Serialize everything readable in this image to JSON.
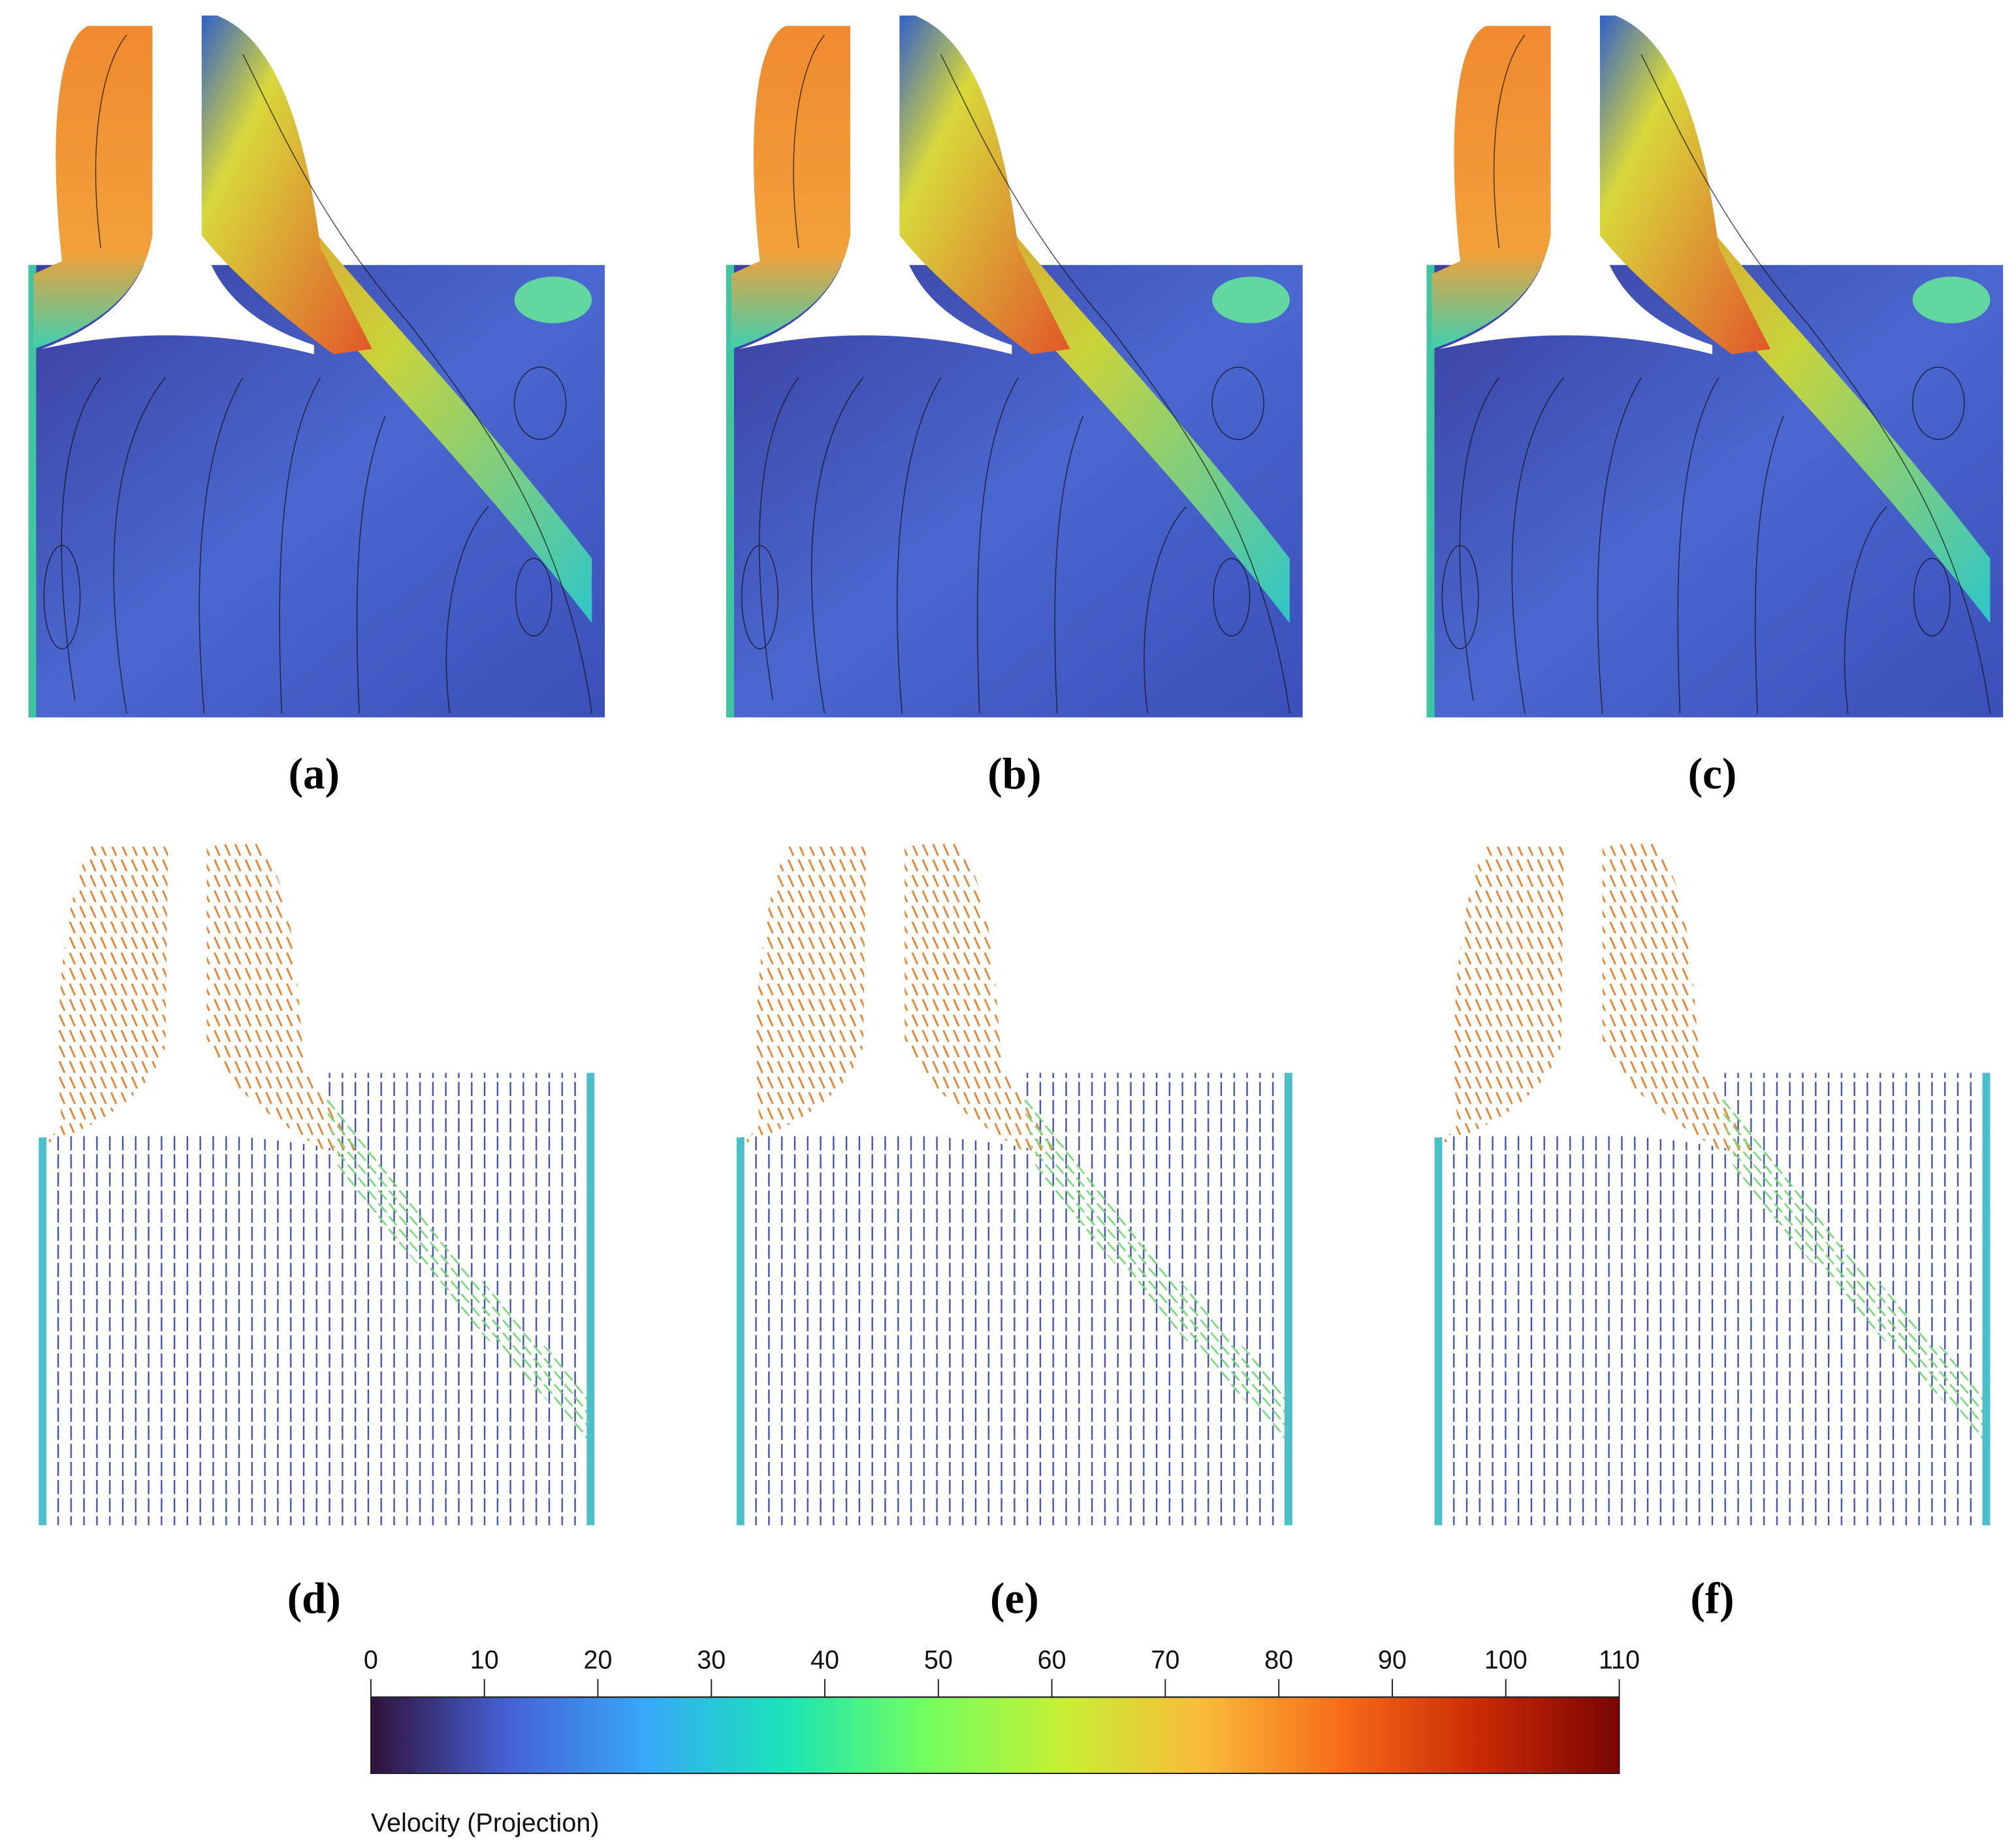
{
  "panels": [
    {
      "label": "(a)"
    },
    {
      "label": "(b)"
    },
    {
      "label": "(c)"
    },
    {
      "label": "(d)"
    },
    {
      "label": "(e)"
    },
    {
      "label": "(f)"
    }
  ],
  "colorbar": {
    "label": "Velocity (Projection)",
    "range": [
      0,
      110
    ],
    "ticks": [
      0,
      10,
      20,
      30,
      40,
      50,
      60,
      70,
      80,
      90,
      100,
      110
    ],
    "colors": [
      "#30123b",
      "#4662d7",
      "#36aaf9",
      "#1ae4b6",
      "#72fe5e",
      "#c7ef34",
      "#fabb39",
      "#f66b19",
      "#ca2a04",
      "#7a0403"
    ]
  }
}
